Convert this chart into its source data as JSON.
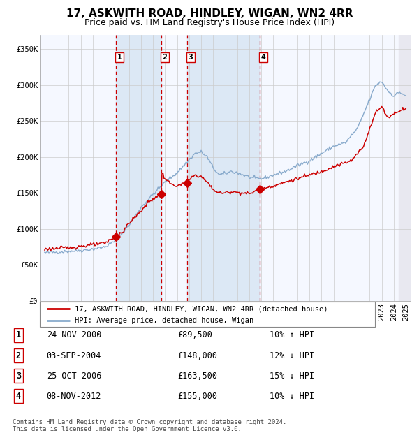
{
  "title": "17, ASKWITH ROAD, HINDLEY, WIGAN, WN2 4RR",
  "subtitle": "Price paid vs. HM Land Registry's House Price Index (HPI)",
  "sale_label": "17, ASKWITH ROAD, HINDLEY, WIGAN, WN2 4RR (detached house)",
  "hpi_label": "HPI: Average price, detached house, Wigan",
  "footer": "Contains HM Land Registry data © Crown copyright and database right 2024.\nThis data is licensed under the Open Government Licence v3.0.",
  "transactions": [
    {
      "num": 1,
      "date": "24-NOV-2000",
      "price": 89500,
      "pct": "10%",
      "dir": "↑",
      "rel": "HPI"
    },
    {
      "num": 2,
      "date": "03-SEP-2004",
      "price": 148000,
      "pct": "12%",
      "dir": "↓",
      "rel": "HPI"
    },
    {
      "num": 3,
      "date": "25-OCT-2006",
      "price": 163500,
      "pct": "15%",
      "dir": "↓",
      "rel": "HPI"
    },
    {
      "num": 4,
      "date": "08-NOV-2012",
      "price": 155000,
      "pct": "10%",
      "dir": "↓",
      "rel": "HPI"
    }
  ],
  "transaction_dates_decimal": [
    2000.9,
    2004.67,
    2006.81,
    2012.85
  ],
  "vline_color": "#cc0000",
  "sale_line_color": "#cc0000",
  "hpi_line_color": "#88aacc",
  "marker_color": "#cc0000",
  "shade_color": "#dce8f5",
  "ylim": [
    0,
    370000
  ],
  "xlim_start": 1994.6,
  "xlim_end": 2025.4,
  "yticks": [
    0,
    50000,
    100000,
    150000,
    200000,
    250000,
    300000,
    350000
  ],
  "ytick_labels": [
    "£0",
    "£50K",
    "£100K",
    "£150K",
    "£200K",
    "£250K",
    "£300K",
    "£350K"
  ],
  "grid_color": "#cccccc",
  "title_fontsize": 11,
  "subtitle_fontsize": 9,
  "axis_fontsize": 7.5,
  "hpi_anchors": [
    [
      1995.0,
      67000
    ],
    [
      1996.0,
      68000
    ],
    [
      1997.0,
      69000
    ],
    [
      1998.0,
      70000
    ],
    [
      1999.0,
      72000
    ],
    [
      2000.0,
      75000
    ],
    [
      2001.0,
      85000
    ],
    [
      2002.0,
      105000
    ],
    [
      2003.0,
      130000
    ],
    [
      2004.0,
      148000
    ],
    [
      2005.0,
      165000
    ],
    [
      2006.0,
      178000
    ],
    [
      2007.5,
      205000
    ],
    [
      2008.0,
      207000
    ],
    [
      2008.5,
      200000
    ],
    [
      2009.0,
      185000
    ],
    [
      2009.5,
      175000
    ],
    [
      2010.0,
      177000
    ],
    [
      2010.5,
      180000
    ],
    [
      2011.0,
      178000
    ],
    [
      2011.5,
      175000
    ],
    [
      2012.0,
      172000
    ],
    [
      2012.5,
      170000
    ],
    [
      2013.0,
      170000
    ],
    [
      2013.5,
      172000
    ],
    [
      2014.0,
      175000
    ],
    [
      2015.0,
      180000
    ],
    [
      2016.0,
      188000
    ],
    [
      2017.0,
      195000
    ],
    [
      2018.0,
      205000
    ],
    [
      2019.0,
      215000
    ],
    [
      2020.0,
      220000
    ],
    [
      2021.0,
      240000
    ],
    [
      2022.0,
      280000
    ],
    [
      2022.5,
      300000
    ],
    [
      2023.0,
      305000
    ],
    [
      2023.5,
      292000
    ],
    [
      2024.0,
      285000
    ],
    [
      2024.5,
      290000
    ],
    [
      2025.0,
      285000
    ]
  ],
  "sale_anchors": [
    [
      1995.0,
      72000
    ],
    [
      1996.0,
      73000
    ],
    [
      1997.0,
      74000
    ],
    [
      1998.0,
      76000
    ],
    [
      1999.0,
      78000
    ],
    [
      2000.0,
      80000
    ],
    [
      2000.9,
      89500
    ],
    [
      2001.0,
      92000
    ],
    [
      2001.5,
      96000
    ],
    [
      2002.0,
      108000
    ],
    [
      2003.0,
      125000
    ],
    [
      2003.5,
      135000
    ],
    [
      2004.0,
      142000
    ],
    [
      2004.67,
      148000
    ],
    [
      2004.75,
      178000
    ],
    [
      2005.0,
      170000
    ],
    [
      2005.5,
      162000
    ],
    [
      2006.0,
      160000
    ],
    [
      2006.5,
      162000
    ],
    [
      2006.81,
      163500
    ],
    [
      2007.0,
      168000
    ],
    [
      2007.5,
      175000
    ],
    [
      2008.0,
      173000
    ],
    [
      2008.5,
      165000
    ],
    [
      2009.0,
      155000
    ],
    [
      2009.5,
      150000
    ],
    [
      2010.0,
      150000
    ],
    [
      2010.5,
      152000
    ],
    [
      2011.0,
      151000
    ],
    [
      2011.5,
      150000
    ],
    [
      2012.0,
      149000
    ],
    [
      2012.85,
      155000
    ],
    [
      2013.0,
      157000
    ],
    [
      2013.5,
      158000
    ],
    [
      2014.0,
      160000
    ],
    [
      2015.0,
      165000
    ],
    [
      2016.0,
      170000
    ],
    [
      2017.0,
      175000
    ],
    [
      2018.0,
      180000
    ],
    [
      2019.0,
      187000
    ],
    [
      2020.0,
      192000
    ],
    [
      2020.5,
      195000
    ],
    [
      2021.0,
      205000
    ],
    [
      2021.5,
      215000
    ],
    [
      2022.0,
      240000
    ],
    [
      2022.5,
      262000
    ],
    [
      2023.0,
      270000
    ],
    [
      2023.5,
      255000
    ],
    [
      2024.0,
      260000
    ],
    [
      2024.5,
      265000
    ],
    [
      2025.0,
      268000
    ]
  ],
  "hatch_start": 2024.42
}
